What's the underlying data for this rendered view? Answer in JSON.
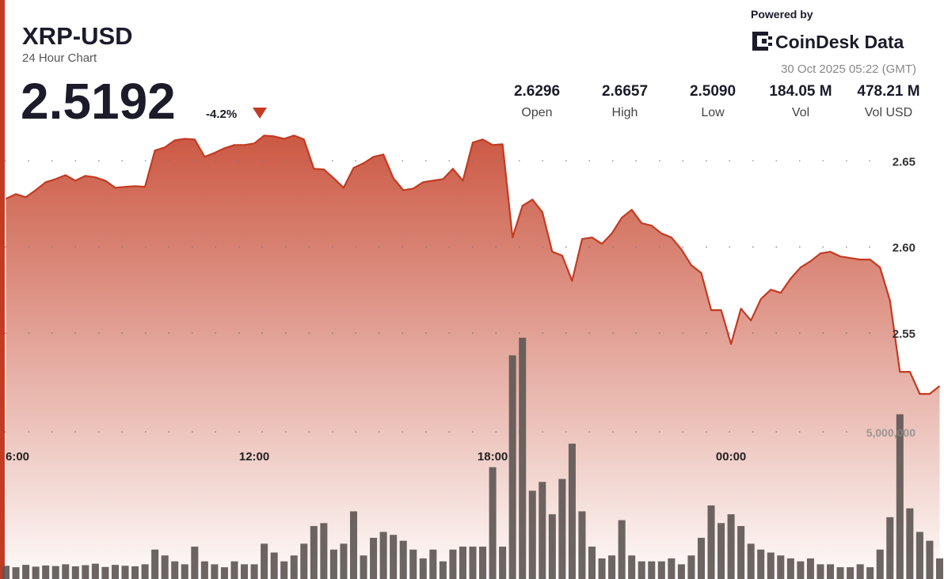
{
  "header": {
    "title": "XRP-USD",
    "subtitle": "24 Hour Chart",
    "price": "2.5192",
    "change": "-4.2%",
    "powered_by": "Powered by",
    "brand": "CoinDesk Data",
    "timestamp": "30 Oct 2025 05:22 (GMT)",
    "stats": [
      {
        "value": "2.6296",
        "label": "Open"
      },
      {
        "value": "2.6657",
        "label": "High"
      },
      {
        "value": "2.5090",
        "label": "Low"
      },
      {
        "value": "184.05 M",
        "label": "Vol"
      },
      {
        "value": "478.21 M",
        "label": "Vol USD"
      }
    ]
  },
  "chart_data": {
    "type": "line",
    "color": "#c23b22",
    "bar_color": "#5f5855",
    "x": [
      5.75,
      6,
      6.25,
      6.5,
      6.75,
      7,
      7.25,
      7.5,
      7.75,
      8,
      8.25,
      8.5,
      8.75,
      9,
      9.25,
      9.5,
      9.75,
      10,
      10.25,
      10.5,
      10.75,
      11,
      11.25,
      11.5,
      11.75,
      12,
      12.25,
      12.5,
      12.75,
      13,
      13.25,
      13.5,
      13.75,
      14,
      14.25,
      14.5,
      14.75,
      15,
      15.25,
      15.5,
      15.75,
      16,
      16.25,
      16.5,
      16.75,
      17,
      17.25,
      17.5,
      17.75,
      18,
      18.25,
      18.5,
      18.75,
      19,
      19.25,
      19.5,
      19.75,
      20,
      20.25,
      20.5,
      20.75,
      21,
      21.25,
      21.5,
      21.75,
      22,
      22.25,
      22.5,
      22.75,
      23,
      23.25,
      23.5,
      23.75,
      24,
      24.25,
      24.5,
      24.75,
      25,
      25.25,
      25.5,
      25.75,
      26,
      26.25,
      26.5,
      26.75,
      27,
      27.25,
      27.5,
      27.75,
      28,
      28.25,
      28.5,
      28.75,
      29,
      29.25
    ],
    "series": [
      {
        "name": "Price",
        "values": [
          2.628,
          2.6307,
          2.6289,
          2.633,
          2.6376,
          2.6394,
          2.6417,
          2.6385,
          2.6413,
          2.6404,
          2.6385,
          2.6344,
          2.6349,
          2.6353,
          2.6349,
          2.656,
          2.6578,
          2.6619,
          2.6628,
          2.6624,
          2.6523,
          2.6546,
          2.6573,
          2.6592,
          2.6592,
          2.6601,
          2.6647,
          2.6642,
          2.6628,
          2.6647,
          2.6624,
          2.6454,
          2.645,
          2.6399,
          2.6344,
          2.6459,
          2.6486,
          2.6523,
          2.6537,
          2.6399,
          2.633,
          2.6339,
          2.6376,
          2.6385,
          2.6394,
          2.6454,
          2.6385,
          2.6606,
          2.6624,
          2.6592,
          2.6596,
          2.6055,
          2.6239,
          2.6275,
          2.6202,
          2.5972,
          2.595,
          2.5803,
          2.6046,
          2.6055,
          2.6018,
          2.6078,
          2.617,
          2.6216,
          2.6138,
          2.6124,
          2.6078,
          2.6055,
          2.5986,
          2.5894,
          2.5849,
          2.5633,
          2.5633,
          2.5436,
          2.5642,
          2.5573,
          2.5697,
          2.5752,
          2.5734,
          2.5817,
          2.5881,
          2.5917,
          2.5963,
          2.5972,
          2.5945,
          2.5936,
          2.5927,
          2.5927,
          2.5881,
          2.5688,
          2.5275,
          2.5275,
          2.5147,
          2.5147,
          2.5193
        ]
      },
      {
        "name": "Volume",
        "axis": "y2",
        "values": [
          450000,
          400000,
          480000,
          420000,
          460000,
          440000,
          500000,
          430000,
          470000,
          520000,
          410000,
          480000,
          450000,
          430000,
          500000,
          1000000,
          800000,
          600000,
          500000,
          1100000,
          600000,
          500000,
          400000,
          600000,
          500000,
          500000,
          1200000,
          900000,
          600000,
          800000,
          1200000,
          1800000,
          1900000,
          1000000,
          1200000,
          2300000,
          800000,
          1400000,
          1600000,
          1500000,
          1300000,
          1000000,
          700000,
          1000000,
          600000,
          1000000,
          1100000,
          1100000,
          1100000,
          3800000,
          1100000,
          7600000,
          8200000,
          3000000,
          3300000,
          2200000,
          3400000,
          4600000,
          2300000,
          1100000,
          700000,
          800000,
          2000000,
          800000,
          600000,
          600000,
          600000,
          700000,
          500000,
          800000,
          1400000,
          2500000,
          1900000,
          2200000,
          1800000,
          1200000,
          1000000,
          900000,
          800000,
          700000,
          600000,
          700000,
          500000,
          500000,
          400000,
          400000,
          500000,
          400000,
          1000000,
          2100000,
          5600000,
          2400000,
          1600000,
          1300000,
          700000
        ]
      }
    ],
    "xlim": [
      5.72,
      29.32
    ],
    "xticks": [
      {
        "value": 6,
        "label": "6:00"
      },
      {
        "value": 12,
        "label": "12:00"
      },
      {
        "value": 18,
        "label": "18:00"
      },
      {
        "value": 24,
        "label": "00:00"
      }
    ],
    "ylim": [
      2.41,
      2.68
    ],
    "yticks": [
      2.55,
      {
        "value": 2.6,
        "label": "2.60"
      },
      2.65
    ],
    "y2lim": [
      0,
      10000000
    ],
    "y2ticks": [
      {
        "value": 5000000,
        "label": "5,000,000"
      }
    ],
    "grid": true
  }
}
